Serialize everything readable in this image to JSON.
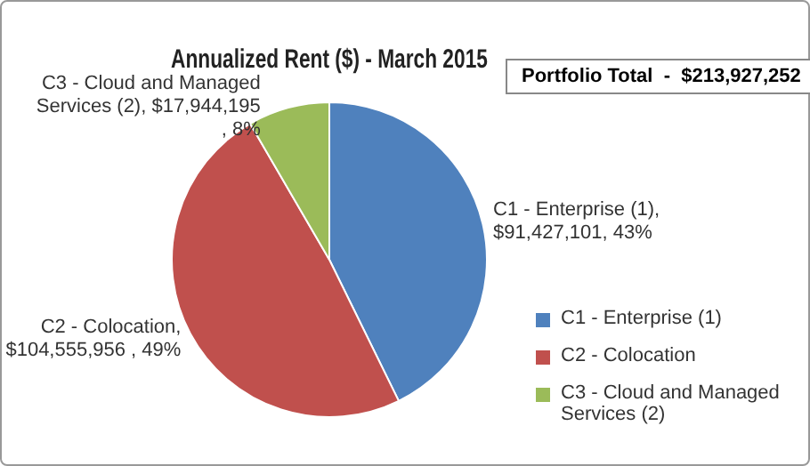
{
  "chart_data": {
    "type": "pie",
    "title": "Annualized Rent ($) - March 2015",
    "categories": [
      "C1 - Enterprise (1)",
      "C2 - Colocation",
      "C3 - Cloud and Managed Services (2)"
    ],
    "values": [
      91427101,
      104555956,
      17944195
    ],
    "colors": [
      "#4f81bd",
      "#c0504d",
      "#9bbb59"
    ],
    "value_labels": [
      "C1 - Enterprise (1), $91,427,101, 43%",
      "C2 - Colocation, $104,555,956 , 49%",
      "C3 - Cloud and Managed Services (2), $17,944,195 , 8%"
    ],
    "annotations": [
      "Portfolio Total  -  $213,927,252"
    ],
    "legend": "right"
  }
}
